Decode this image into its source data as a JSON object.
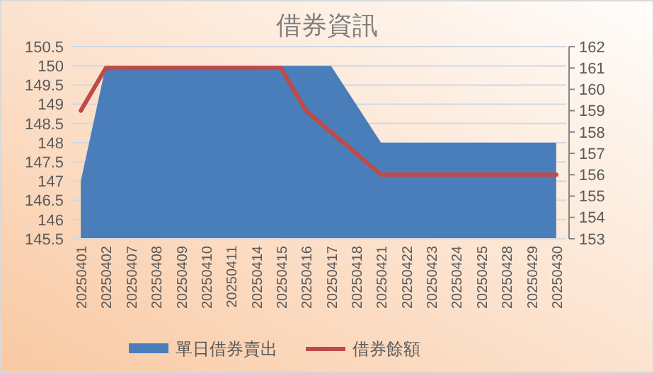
{
  "chart_data": {
    "type": "area",
    "title": "借券資訊",
    "categories": [
      "20250401",
      "20250402",
      "20250407",
      "20250408",
      "20250409",
      "20250410",
      "20250411",
      "20250414",
      "20250415",
      "20250416",
      "20250417",
      "20250418",
      "20250421",
      "20250422",
      "20250423",
      "20250424",
      "20250425",
      "20250428",
      "20250429",
      "20250430"
    ],
    "series": [
      {
        "name": "單日借券賣出",
        "color": "#4a7ebb",
        "values": [
          147,
          150,
          150,
          150,
          150,
          150,
          150,
          150,
          150,
          150,
          150,
          149,
          148,
          148,
          148,
          148,
          148,
          148,
          148,
          148
        ]
      },
      {
        "name": "借券餘額",
        "type": "line",
        "axis": "y2",
        "color": "#be4b48",
        "values": [
          159,
          161,
          161,
          161,
          161,
          161,
          161,
          161,
          161,
          159,
          158,
          157,
          156,
          156,
          156,
          156,
          156,
          156,
          156,
          156
        ]
      }
    ],
    "ylim": [
      145.5,
      150.5
    ],
    "yticks": [
      145.5,
      146,
      146.5,
      147,
      147.5,
      148,
      148.5,
      149,
      149.5,
      150,
      150.5
    ],
    "y2lim": [
      153,
      162
    ],
    "y2ticks": [
      153,
      154,
      155,
      156,
      157,
      158,
      159,
      160,
      161,
      162
    ],
    "grid": "y",
    "legend": "bottom"
  }
}
